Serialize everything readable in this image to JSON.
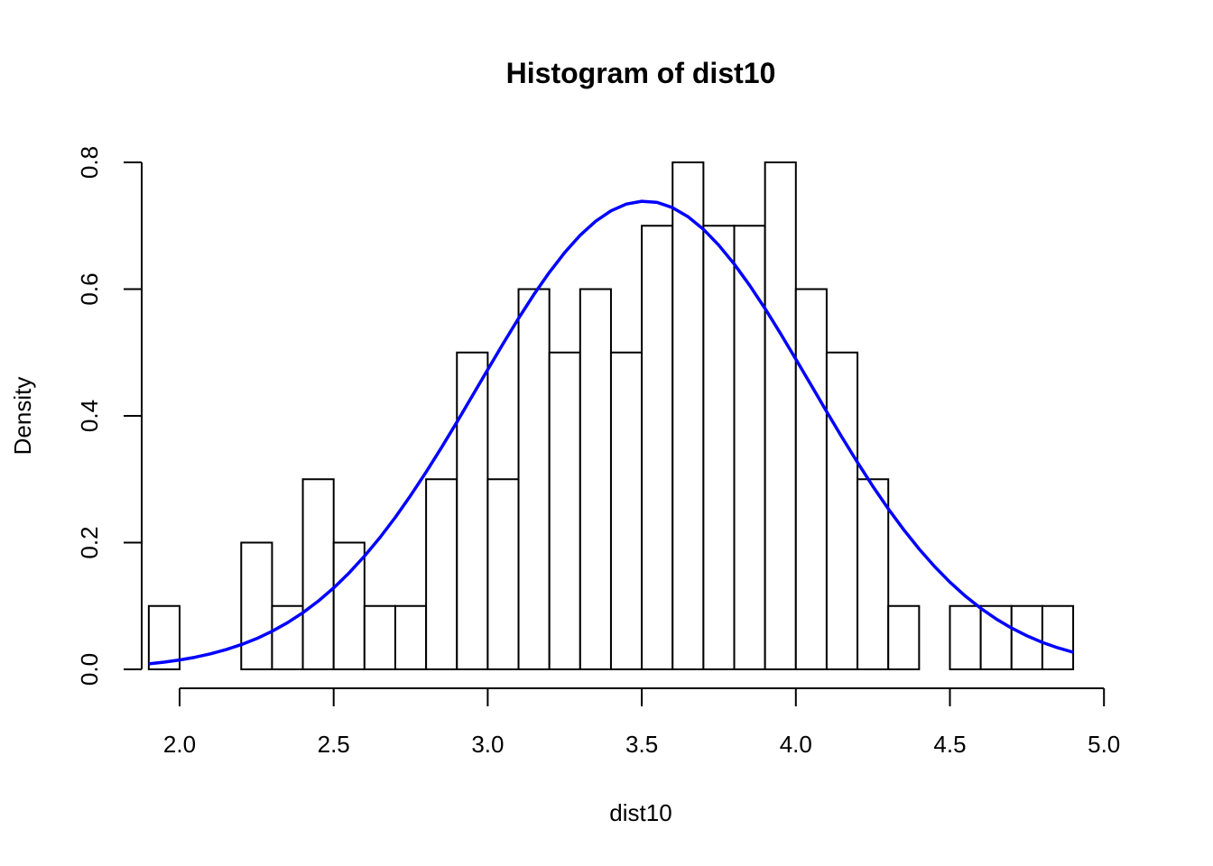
{
  "chart_data": {
    "type": "bar",
    "title": "Histogram of dist10",
    "xlabel": "dist10",
    "ylabel": "Density",
    "xlim": [
      1.9,
      5.0
    ],
    "ylim": [
      0,
      0.8
    ],
    "x_ticks": [
      2.0,
      2.5,
      3.0,
      3.5,
      4.0,
      4.5,
      5.0
    ],
    "x_tick_labels": [
      "2.0",
      "2.5",
      "3.0",
      "3.5",
      "4.0",
      "4.5",
      "5.0"
    ],
    "y_ticks": [
      0.0,
      0.2,
      0.4,
      0.6,
      0.8
    ],
    "y_tick_labels": [
      "0.0",
      "0.2",
      "0.4",
      "0.6",
      "0.8"
    ],
    "bin_edges": [
      1.9,
      2.0,
      2.1,
      2.2,
      2.3,
      2.4,
      2.5,
      2.6,
      2.7,
      2.8,
      2.9,
      3.0,
      3.1,
      3.2,
      3.3,
      3.4,
      3.5,
      3.6,
      3.7,
      3.8,
      3.9,
      4.0,
      4.1,
      4.2,
      4.3,
      4.4,
      4.5,
      4.6,
      4.7,
      4.8,
      4.9
    ],
    "values": [
      0.1,
      0.0,
      0.0,
      0.2,
      0.1,
      0.3,
      0.2,
      0.1,
      0.1,
      0.3,
      0.5,
      0.3,
      0.6,
      0.5,
      0.6,
      0.5,
      0.7,
      0.8,
      0.7,
      0.7,
      0.8,
      0.6,
      0.5,
      0.3,
      0.1,
      0.0,
      0.1,
      0.1,
      0.1,
      0.1
    ],
    "density_curve": {
      "color": "#0000ff",
      "type": "normal",
      "mean": 3.51,
      "sd": 0.54
    },
    "grid": false,
    "legend": "none"
  }
}
